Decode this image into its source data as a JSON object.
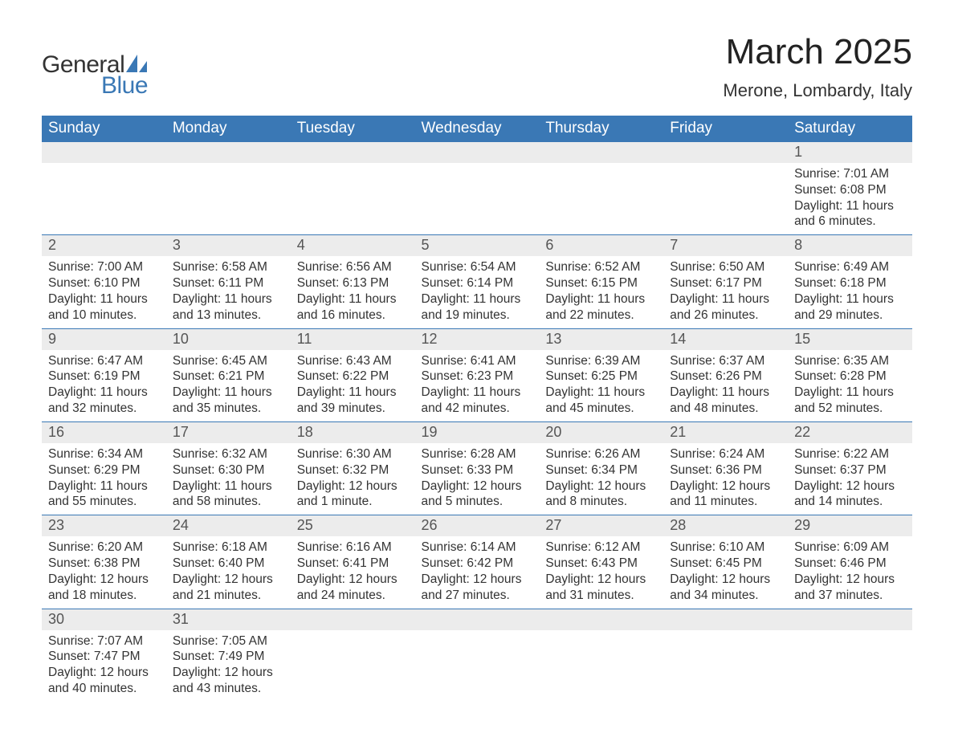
{
  "brand": {
    "name1": "General",
    "name2": "Blue",
    "text_color": "#333333",
    "accent_color": "#3a78b5"
  },
  "title": "March 2025",
  "location": "Merone, Lombardy, Italy",
  "colors": {
    "header_bg": "#3a78b5",
    "header_fg": "#ffffff",
    "row_sep": "#3a78b5",
    "daynum_bg": "#ececec",
    "body_fg": "#333333",
    "page_bg": "#ffffff"
  },
  "typography": {
    "title_fontsize": 44,
    "location_fontsize": 22,
    "th_fontsize": 19,
    "daynum_fontsize": 18,
    "cell_fontsize": 15.5,
    "font_family": "Arial"
  },
  "calendar": {
    "day_headers": [
      "Sunday",
      "Monday",
      "Tuesday",
      "Wednesday",
      "Thursday",
      "Friday",
      "Saturday"
    ],
    "weeks": [
      [
        null,
        null,
        null,
        null,
        null,
        null,
        {
          "day": "1",
          "sunrise": "7:01 AM",
          "sunset": "6:08 PM",
          "daylight": "11 hours and 6 minutes."
        }
      ],
      [
        {
          "day": "2",
          "sunrise": "7:00 AM",
          "sunset": "6:10 PM",
          "daylight": "11 hours and 10 minutes."
        },
        {
          "day": "3",
          "sunrise": "6:58 AM",
          "sunset": "6:11 PM",
          "daylight": "11 hours and 13 minutes."
        },
        {
          "day": "4",
          "sunrise": "6:56 AM",
          "sunset": "6:13 PM",
          "daylight": "11 hours and 16 minutes."
        },
        {
          "day": "5",
          "sunrise": "6:54 AM",
          "sunset": "6:14 PM",
          "daylight": "11 hours and 19 minutes."
        },
        {
          "day": "6",
          "sunrise": "6:52 AM",
          "sunset": "6:15 PM",
          "daylight": "11 hours and 22 minutes."
        },
        {
          "day": "7",
          "sunrise": "6:50 AM",
          "sunset": "6:17 PM",
          "daylight": "11 hours and 26 minutes."
        },
        {
          "day": "8",
          "sunrise": "6:49 AM",
          "sunset": "6:18 PM",
          "daylight": "11 hours and 29 minutes."
        }
      ],
      [
        {
          "day": "9",
          "sunrise": "6:47 AM",
          "sunset": "6:19 PM",
          "daylight": "11 hours and 32 minutes."
        },
        {
          "day": "10",
          "sunrise": "6:45 AM",
          "sunset": "6:21 PM",
          "daylight": "11 hours and 35 minutes."
        },
        {
          "day": "11",
          "sunrise": "6:43 AM",
          "sunset": "6:22 PM",
          "daylight": "11 hours and 39 minutes."
        },
        {
          "day": "12",
          "sunrise": "6:41 AM",
          "sunset": "6:23 PM",
          "daylight": "11 hours and 42 minutes."
        },
        {
          "day": "13",
          "sunrise": "6:39 AM",
          "sunset": "6:25 PM",
          "daylight": "11 hours and 45 minutes."
        },
        {
          "day": "14",
          "sunrise": "6:37 AM",
          "sunset": "6:26 PM",
          "daylight": "11 hours and 48 minutes."
        },
        {
          "day": "15",
          "sunrise": "6:35 AM",
          "sunset": "6:28 PM",
          "daylight": "11 hours and 52 minutes."
        }
      ],
      [
        {
          "day": "16",
          "sunrise": "6:34 AM",
          "sunset": "6:29 PM",
          "daylight": "11 hours and 55 minutes."
        },
        {
          "day": "17",
          "sunrise": "6:32 AM",
          "sunset": "6:30 PM",
          "daylight": "11 hours and 58 minutes."
        },
        {
          "day": "18",
          "sunrise": "6:30 AM",
          "sunset": "6:32 PM",
          "daylight": "12 hours and 1 minute."
        },
        {
          "day": "19",
          "sunrise": "6:28 AM",
          "sunset": "6:33 PM",
          "daylight": "12 hours and 5 minutes."
        },
        {
          "day": "20",
          "sunrise": "6:26 AM",
          "sunset": "6:34 PM",
          "daylight": "12 hours and 8 minutes."
        },
        {
          "day": "21",
          "sunrise": "6:24 AM",
          "sunset": "6:36 PM",
          "daylight": "12 hours and 11 minutes."
        },
        {
          "day": "22",
          "sunrise": "6:22 AM",
          "sunset": "6:37 PM",
          "daylight": "12 hours and 14 minutes."
        }
      ],
      [
        {
          "day": "23",
          "sunrise": "6:20 AM",
          "sunset": "6:38 PM",
          "daylight": "12 hours and 18 minutes."
        },
        {
          "day": "24",
          "sunrise": "6:18 AM",
          "sunset": "6:40 PM",
          "daylight": "12 hours and 21 minutes."
        },
        {
          "day": "25",
          "sunrise": "6:16 AM",
          "sunset": "6:41 PM",
          "daylight": "12 hours and 24 minutes."
        },
        {
          "day": "26",
          "sunrise": "6:14 AM",
          "sunset": "6:42 PM",
          "daylight": "12 hours and 27 minutes."
        },
        {
          "day": "27",
          "sunrise": "6:12 AM",
          "sunset": "6:43 PM",
          "daylight": "12 hours and 31 minutes."
        },
        {
          "day": "28",
          "sunrise": "6:10 AM",
          "sunset": "6:45 PM",
          "daylight": "12 hours and 34 minutes."
        },
        {
          "day": "29",
          "sunrise": "6:09 AM",
          "sunset": "6:46 PM",
          "daylight": "12 hours and 37 minutes."
        }
      ],
      [
        {
          "day": "30",
          "sunrise": "7:07 AM",
          "sunset": "7:47 PM",
          "daylight": "12 hours and 40 minutes."
        },
        {
          "day": "31",
          "sunrise": "7:05 AM",
          "sunset": "7:49 PM",
          "daylight": "12 hours and 43 minutes."
        },
        null,
        null,
        null,
        null,
        null
      ]
    ],
    "labels": {
      "sunrise": "Sunrise:",
      "sunset": "Sunset:",
      "daylight": "Daylight:"
    }
  }
}
